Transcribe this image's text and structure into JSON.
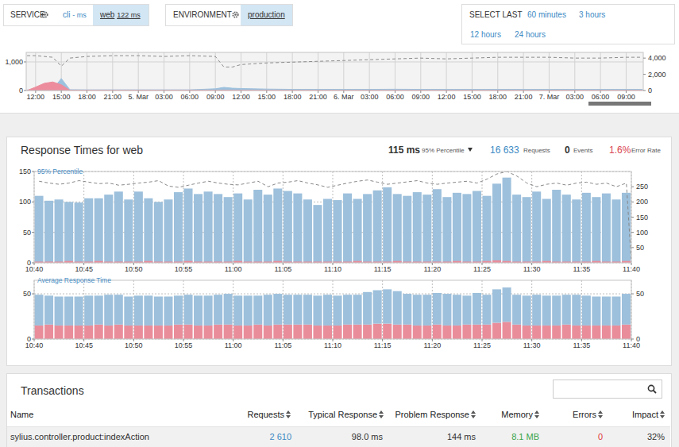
{
  "header": {
    "service": {
      "label": "SERVICE",
      "options": [
        {
          "name": "cli",
          "value": "- ms"
        },
        {
          "name": "web",
          "value": "122 ms",
          "selected": true
        }
      ]
    },
    "environment": {
      "label": "ENVIRONMENT",
      "options": [
        {
          "name": "production",
          "selected": true
        }
      ]
    },
    "select_last": {
      "label": "SELECT LAST",
      "options": [
        "60 minutes",
        "3 hours",
        "12 hours",
        "24 hours"
      ]
    }
  },
  "panel": {
    "title": "Response Times for web",
    "percentile_value": "115 ms",
    "percentile_label": "95% Percentile",
    "requests_value": "16 633",
    "requests_label": "Requests",
    "events_value": "0",
    "events_label": "Events",
    "error_rate_value": "1.6%",
    "error_rate_label": "Error Rate"
  },
  "chart_data": [
    {
      "type": "area",
      "grid": true,
      "x": [
        11,
        12,
        13,
        14,
        15,
        16,
        18,
        21,
        24,
        27,
        30,
        33,
        34,
        35,
        36,
        39,
        42,
        45,
        48,
        51,
        54,
        57,
        60,
        63,
        66,
        69,
        72,
        75,
        78,
        81,
        82.9
      ],
      "xlim": [
        10.9,
        83
      ],
      "xticks": [
        {
          "value": 12,
          "label": "12:00"
        },
        {
          "value": 15,
          "label": "15:00"
        },
        {
          "value": 18,
          "label": "18:00"
        },
        {
          "value": 21,
          "label": "21:00"
        },
        {
          "value": 24,
          "label": "5. Mar"
        },
        {
          "value": 27,
          "label": "03:00"
        },
        {
          "value": 30,
          "label": "06:00"
        },
        {
          "value": 33,
          "label": "09:00"
        },
        {
          "value": 36,
          "label": "12:00"
        },
        {
          "value": 39,
          "label": "15:00"
        },
        {
          "value": 42,
          "label": "18:00"
        },
        {
          "value": 45,
          "label": "21:00"
        },
        {
          "value": 48,
          "label": "6. Mar"
        },
        {
          "value": 51,
          "label": "03:00"
        },
        {
          "value": 54,
          "label": "06:00"
        },
        {
          "value": 57,
          "label": "09:00"
        },
        {
          "value": 60,
          "label": "12:00"
        },
        {
          "value": 63,
          "label": "15:00"
        },
        {
          "value": 66,
          "label": "18:00"
        },
        {
          "value": 69,
          "label": "21:00"
        },
        {
          "value": 72,
          "label": "7. Mar"
        },
        {
          "value": 75,
          "label": "03:00"
        },
        {
          "value": 78,
          "label": "06:00"
        },
        {
          "value": 81,
          "label": "09:00"
        }
      ],
      "ylim": [
        0,
        1333
      ],
      "yticks": [
        0,
        {
          "value": 1000,
          "label": "1,000"
        }
      ],
      "y2lim": [
        0,
        4700
      ],
      "y2ticks": [
        0,
        {
          "value": 2000,
          "label": "2,000"
        },
        {
          "value": 4000,
          "label": "4,000"
        }
      ],
      "series": [
        {
          "color": "#9cc1de",
          "values": [
            20,
            20,
            30,
            40,
            420,
            30,
            25,
            25,
            25,
            25,
            25,
            60,
            110,
            80,
            70,
            50,
            40,
            40,
            40,
            40,
            45,
            40,
            40,
            40,
            40,
            40,
            40,
            40,
            40,
            40,
            40
          ]
        },
        {
          "color": "#ec8c9c",
          "values": [
            0,
            120,
            250,
            300,
            200,
            10,
            10,
            10,
            10,
            10,
            10,
            10,
            15,
            10,
            10,
            10,
            10,
            10,
            10,
            10,
            10,
            10,
            10,
            10,
            10,
            10,
            10,
            10,
            10,
            10,
            10
          ]
        },
        {
          "type": "line",
          "line_style": "dashed",
          "color": "#8c8c8c",
          "axis": "y2",
          "values": [
            4300,
            4300,
            4200,
            4100,
            3000,
            4000,
            4200,
            4300,
            4300,
            4200,
            4300,
            4200,
            2900,
            2900,
            3200,
            3400,
            3500,
            3600,
            3700,
            3800,
            3900,
            4000,
            3900,
            4000,
            4100,
            4100,
            4100,
            4000,
            4000,
            4100,
            4100
          ]
        }
      ]
    },
    {
      "type": "bar",
      "title": "95% Percentile",
      "grid": true,
      "stacked": false,
      "x": [
        0,
        1,
        2,
        3,
        4,
        5,
        6,
        7,
        8,
        9,
        10,
        11,
        12,
        13,
        14,
        15,
        16,
        17,
        18,
        19,
        20,
        21,
        22,
        23,
        24,
        25,
        26,
        27,
        28,
        29,
        30,
        31,
        32,
        33,
        34,
        35,
        36,
        37,
        38,
        39,
        40,
        41,
        42,
        43,
        44,
        45,
        46,
        47,
        48,
        49,
        50,
        51,
        52,
        53,
        54,
        55,
        56,
        57,
        58,
        59
      ],
      "xlim": [
        0,
        60
      ],
      "xticks": [
        {
          "value": 0,
          "label": "10:40"
        },
        {
          "value": 5,
          "label": "10:45"
        },
        {
          "value": 10,
          "label": "10:50"
        },
        {
          "value": 15,
          "label": "10:55"
        },
        {
          "value": 20,
          "label": "11:00"
        },
        {
          "value": 25,
          "label": "11:05"
        },
        {
          "value": 30,
          "label": "11:10"
        },
        {
          "value": 35,
          "label": "11:15"
        },
        {
          "value": 40,
          "label": "11:20"
        },
        {
          "value": 45,
          "label": "11:25"
        },
        {
          "value": 50,
          "label": "11:30"
        },
        {
          "value": 55,
          "label": "11:35"
        },
        {
          "value": 60,
          "label": "11:40"
        }
      ],
      "ylim": [
        0,
        150
      ],
      "yticks": [
        0,
        50,
        100,
        150
      ],
      "y2lim": [
        0,
        300
      ],
      "y2ticks": [
        50,
        100,
        150,
        200,
        250
      ],
      "series": [
        {
          "color": "#9dc0dc",
          "values": [
            110,
            102,
            104,
            100,
            99,
            106,
            106,
            112,
            117,
            104,
            117,
            106,
            100,
            104,
            116,
            122,
            113,
            117,
            113,
            108,
            114,
            104,
            120,
            112,
            122,
            118,
            114,
            104,
            95,
            105,
            103,
            114,
            105,
            113,
            119,
            124,
            113,
            110,
            116,
            112,
            121,
            108,
            115,
            113,
            118,
            110,
            130,
            140,
            112,
            108,
            117,
            105,
            120,
            112,
            104,
            115,
            108,
            114,
            104,
            115
          ]
        },
        {
          "color": "#ea8d9b",
          "values": [
            2,
            2,
            2,
            3,
            2,
            2,
            3,
            2,
            2,
            2,
            2,
            3,
            2,
            2,
            2,
            3,
            2,
            2,
            2,
            2,
            3,
            2,
            2,
            2,
            3,
            2,
            2,
            2,
            2,
            2,
            2,
            2,
            3,
            2,
            2,
            2,
            3,
            2,
            2,
            2,
            2,
            2,
            3,
            2,
            2,
            3,
            4,
            3,
            2,
            2,
            2,
            3,
            2,
            2,
            2,
            2,
            3,
            2,
            2,
            3
          ]
        },
        {
          "type": "line",
          "line_style": "dashed",
          "color": "#888888",
          "axis": "y2",
          "x": [
            0.5,
            1.5,
            2.5,
            3.5,
            4.5,
            5.5,
            6.5,
            7.5,
            8.5,
            9.5,
            10.5,
            11.5,
            12.5,
            13.5,
            14.5,
            15.5,
            16.5,
            17.5,
            18.5,
            19.5,
            20.5,
            21.5,
            22.5,
            23.5,
            24.5,
            25.5,
            26.5,
            27.5,
            28.5,
            29.5,
            30.5,
            31.5,
            32.5,
            33.5,
            34.5,
            35.5,
            36.5,
            37.5,
            38.5,
            39.5,
            40.5,
            41.5,
            42.5,
            43.5,
            44.5,
            45.5,
            46.5,
            47.5,
            48.5,
            49.5,
            50.5,
            51.5,
            52.5,
            53.5,
            54.5,
            55.5,
            56.5,
            57.5,
            58.5,
            59.5,
            60
          ],
          "values": [
            268,
            262,
            258,
            262,
            270,
            265,
            260,
            262,
            255,
            258,
            262,
            265,
            270,
            252,
            248,
            255,
            262,
            268,
            262,
            258,
            256,
            262,
            268,
            250,
            262,
            265,
            270,
            262,
            256,
            248,
            255,
            262,
            268,
            272,
            265,
            258,
            262,
            266,
            270,
            262,
            258,
            262,
            265,
            268,
            262,
            275,
            292,
            300,
            285,
            262,
            250,
            258,
            262,
            255,
            262,
            265,
            258,
            262,
            250,
            262,
            0
          ]
        }
      ]
    },
    {
      "type": "bar",
      "title": "Average Response Time",
      "grid": true,
      "stacked": true,
      "x": [
        0,
        1,
        2,
        3,
        4,
        5,
        6,
        7,
        8,
        9,
        10,
        11,
        12,
        13,
        14,
        15,
        16,
        17,
        18,
        19,
        20,
        21,
        22,
        23,
        24,
        25,
        26,
        27,
        28,
        29,
        30,
        31,
        32,
        33,
        34,
        35,
        36,
        37,
        38,
        39,
        40,
        41,
        42,
        43,
        44,
        45,
        46,
        47,
        48,
        49,
        50,
        51,
        52,
        53,
        54,
        55,
        56,
        57,
        58,
        59
      ],
      "xlim": [
        0,
        60
      ],
      "xticks": [
        {
          "value": 0,
          "label": "10:40"
        },
        {
          "value": 5,
          "label": "10:45"
        },
        {
          "value": 10,
          "label": "10:50"
        },
        {
          "value": 15,
          "label": "10:55"
        },
        {
          "value": 20,
          "label": "11:00"
        },
        {
          "value": 25,
          "label": "11:05"
        },
        {
          "value": 30,
          "label": "11:10"
        },
        {
          "value": 35,
          "label": "11:15"
        },
        {
          "value": 40,
          "label": "11:20"
        },
        {
          "value": 45,
          "label": "11:25"
        },
        {
          "value": 50,
          "label": "11:30"
        },
        {
          "value": 55,
          "label": "11:35"
        },
        {
          "value": 60,
          "label": "11:40"
        }
      ],
      "ylim": [
        0,
        65
      ],
      "yticks": [
        0,
        50
      ],
      "y2lim": [
        0,
        65
      ],
      "y2ticks": [
        0,
        50
      ],
      "series": [
        {
          "color": "#ea8d9b",
          "values": [
            15,
            16,
            15,
            15,
            15,
            15,
            16,
            15,
            16,
            15,
            15,
            15,
            15,
            15,
            16,
            16,
            15,
            15,
            16,
            16,
            15,
            15,
            16,
            15,
            16,
            16,
            16,
            16,
            15,
            15,
            15,
            16,
            16,
            16,
            17,
            17,
            16,
            16,
            15,
            15,
            16,
            15,
            15,
            16,
            16,
            16,
            18,
            19,
            16,
            15,
            15,
            15,
            15,
            16,
            15,
            15,
            15,
            15,
            15,
            16
          ]
        },
        {
          "color": "#9dc0dc",
          "values": [
            34,
            32,
            32,
            32,
            32,
            33,
            32,
            34,
            33,
            32,
            33,
            33,
            32,
            32,
            32,
            33,
            33,
            33,
            33,
            34,
            33,
            33,
            32,
            34,
            34,
            33,
            33,
            33,
            33,
            34,
            33,
            33,
            33,
            36,
            37,
            38,
            37,
            34,
            34,
            34,
            35,
            35,
            34,
            32,
            35,
            33,
            37,
            38,
            33,
            33,
            34,
            33,
            33,
            33,
            34,
            33,
            32,
            32,
            32,
            34
          ]
        }
      ]
    }
  ],
  "transactions": {
    "title": "Transactions",
    "columns": [
      "Name",
      "Requests",
      "Typical Response",
      "Problem Response",
      "Memory",
      "Errors",
      "Impact"
    ],
    "rows": [
      [
        "sylius.controller.product:indexAction",
        "2 610",
        "98.0 ms",
        "144 ms",
        "8.1 MB",
        "0",
        "32%"
      ]
    ]
  }
}
